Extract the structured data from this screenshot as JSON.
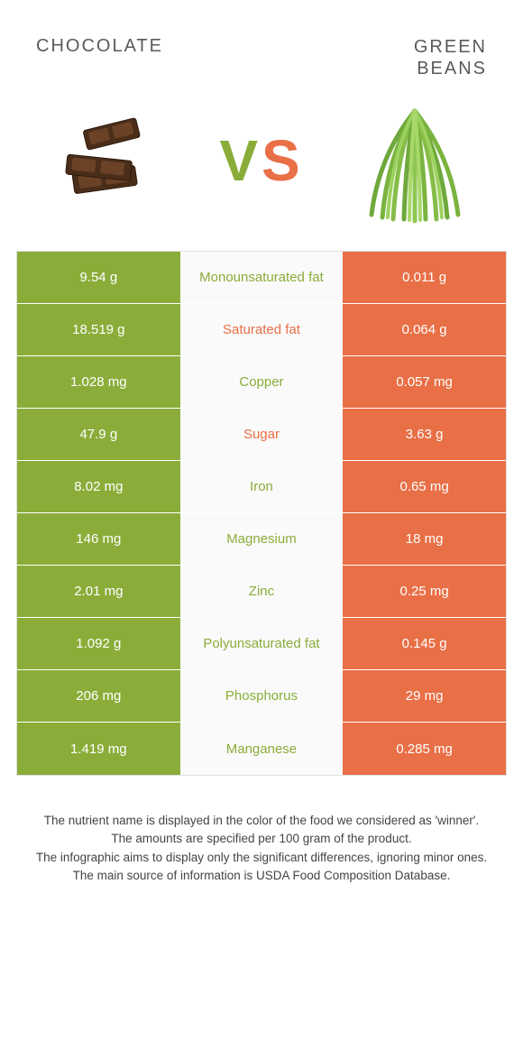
{
  "header": {
    "left_title": "CHOCOLATE",
    "right_title": "GREEN\nBEANS",
    "vs_v": "V",
    "vs_s": "S"
  },
  "colors": {
    "left_bg": "#8aad3a",
    "right_bg": "#e86f46",
    "mid_bg": "#fafafa",
    "left_text_nutrient": "#8aad3a",
    "right_text_nutrient": "#e86f46",
    "border": "#e0e0e0"
  },
  "table": {
    "rows": [
      {
        "left": "9.54 g",
        "nutrient": "Monounsaturated fat",
        "winner": "left",
        "right": "0.011 g"
      },
      {
        "left": "18.519 g",
        "nutrient": "Saturated fat",
        "winner": "right",
        "right": "0.064 g"
      },
      {
        "left": "1.028 mg",
        "nutrient": "Copper",
        "winner": "left",
        "right": "0.057 mg"
      },
      {
        "left": "47.9 g",
        "nutrient": "Sugar",
        "winner": "right",
        "right": "3.63 g"
      },
      {
        "left": "8.02 mg",
        "nutrient": "Iron",
        "winner": "left",
        "right": "0.65 mg"
      },
      {
        "left": "146 mg",
        "nutrient": "Magnesium",
        "winner": "left",
        "right": "18 mg"
      },
      {
        "left": "2.01 mg",
        "nutrient": "Zinc",
        "winner": "left",
        "right": "0.25 mg"
      },
      {
        "left": "1.092 g",
        "nutrient": "Polyunsaturated fat",
        "winner": "left",
        "right": "0.145 g"
      },
      {
        "left": "206 mg",
        "nutrient": "Phosphorus",
        "winner": "left",
        "right": "29 mg"
      },
      {
        "left": "1.419 mg",
        "nutrient": "Manganese",
        "winner": "left",
        "right": "0.285 mg"
      }
    ]
  },
  "footer": {
    "line1": "The nutrient name is displayed in the color of the food we considered as 'winner'.",
    "line2": "The amounts are specified per 100 gram of the product.",
    "line3": "The infographic aims to display only the significant differences, ignoring minor ones.",
    "line4": "The main source of information is USDA Food Composition Database."
  },
  "images": {
    "left_alt": "chocolate-pieces",
    "right_alt": "green-beans-bunch"
  }
}
